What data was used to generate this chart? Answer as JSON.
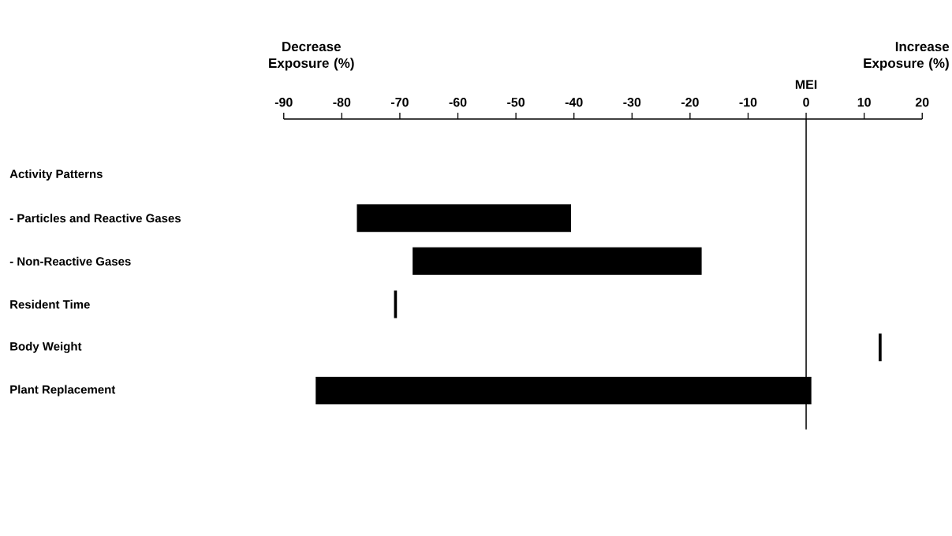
{
  "chart_data": {
    "type": "bar",
    "orientation": "horizontal",
    "categories": [
      "Activity Patterns",
      "- Particles and Reactive Gases",
      "- Non-Reactive Gases",
      "Resident Time",
      "Body Weight",
      "Plant Replacement"
    ],
    "base": [
      null,
      -77.4,
      -67.8,
      -71,
      12.5,
      -84.5
    ],
    "values": [
      null,
      36.9,
      49.8,
      0.5,
      0.5,
      85.4
    ],
    "color": "#000000",
    "xlim": [
      -90,
      20
    ],
    "xticks": [
      -90,
      -80,
      -70,
      -60,
      -50,
      -40,
      -30,
      -20,
      -10,
      0,
      10,
      20
    ],
    "ref_lines": [
      {
        "axis": "x",
        "value": 0,
        "label": "MEI"
      }
    ],
    "annotations": [
      "Decrease Exposure (%)",
      "Increase Exposure (%)"
    ],
    "grid": false
  }
}
